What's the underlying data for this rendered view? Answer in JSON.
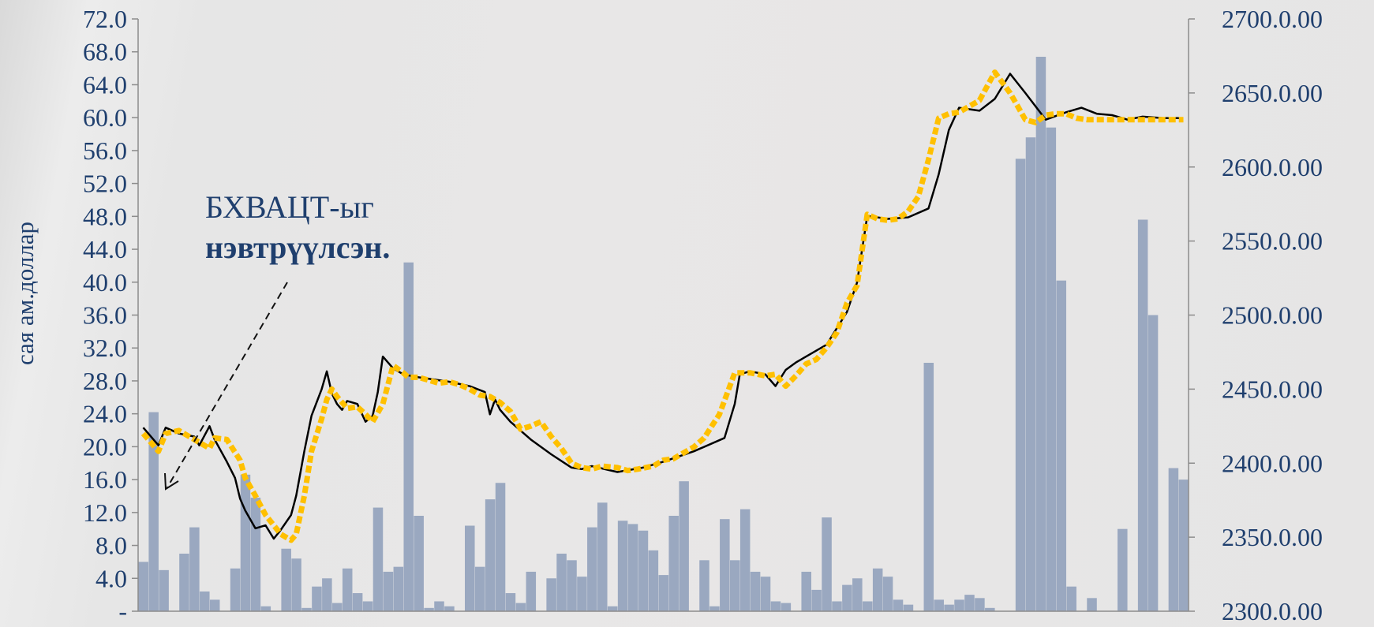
{
  "chart_data": {
    "type": "bar",
    "combo_with": "line",
    "y_left": {
      "label": "сая ам.доллар",
      "ticks": [
        "-",
        "4.0",
        "8.0",
        "12.0",
        "16.0",
        "20.0",
        "24.0",
        "28.0",
        "32.0",
        "36.0",
        "40.0",
        "44.0",
        "48.0",
        "52.0",
        "56.0",
        "60.0",
        "64.0",
        "68.0",
        "72.0"
      ],
      "ylim": [
        0,
        72
      ]
    },
    "y_right": {
      "label": "",
      "ticks": [
        "2300.0.00",
        "2350.0.00",
        "2400.0.00",
        "2450.0.00",
        "2500.0.00",
        "2550.0.00",
        "2600.0.00",
        "2650.0.00",
        "2700.0.00"
      ],
      "ylim": [
        2300,
        2700
      ]
    },
    "annotation": {
      "line1": "БХВАЦТ-ыг",
      "line2": "нэвтрүүлсэн."
    },
    "series": [
      {
        "type": "bar",
        "axis": "left",
        "color": "#9aa8c0",
        "values": [
          6.0,
          24.2,
          5.0,
          0,
          7.0,
          10.2,
          2.4,
          1.4,
          0,
          5.2,
          16.6,
          13.8,
          0.6,
          0,
          7.6,
          6.4,
          0.4,
          3.0,
          4.0,
          1.0,
          5.2,
          2.2,
          1.2,
          12.6,
          4.8,
          5.4,
          42.4,
          11.6,
          0.4,
          1.2,
          0.6,
          0,
          10.4,
          5.4,
          13.6,
          15.6,
          2.2,
          1.0,
          4.8,
          0,
          4.0,
          7.0,
          6.2,
          4.2,
          10.2,
          13.2,
          0.6,
          11.0,
          10.6,
          9.8,
          7.4,
          4.4,
          11.6,
          15.8,
          0,
          6.2,
          0.6,
          11.2,
          6.2,
          12.4,
          4.8,
          4.2,
          1.2,
          1.0,
          0,
          4.8,
          2.6,
          11.4,
          1.2,
          3.2,
          4.0,
          1.2,
          5.2,
          4.2,
          1.4,
          0.8,
          0,
          30.2,
          1.4,
          0.8,
          1.4,
          2.0,
          1.6,
          0.4,
          0,
          0,
          55.0,
          57.6,
          67.4,
          58.8,
          40.2,
          3.0,
          0,
          1.6,
          0,
          0,
          10.0,
          0,
          47.6,
          36.0,
          0,
          17.4,
          16.0
        ]
      },
      {
        "type": "line",
        "axis": "right",
        "name": "",
        "color": "#ffc000",
        "x": [
          0,
          1.5,
          2.2,
          3.5,
          5.0,
          6.5,
          7.0,
          8.2,
          9.5,
          10.0,
          11.0,
          12.0,
          12.8,
          13.5,
          14.5,
          15.0,
          15.8,
          16.5,
          17.5,
          18.0,
          18.5,
          19.0,
          20.0,
          21.0,
          21.8,
          22.5,
          23.5,
          24.5,
          25.5,
          26.0,
          27.0,
          28.0,
          29.0,
          30.0,
          31.0,
          32.0,
          33.0,
          34.0,
          35.0,
          36.0,
          37.0,
          38.0,
          39.0,
          40.0,
          41.0,
          42.0,
          43.0,
          44.0,
          45.0,
          46.5,
          47.5,
          48.5,
          50.0,
          51.0,
          52.0,
          53.0,
          54.0,
          55.0,
          56.5,
          58.0,
          59.5,
          61.0,
          62.0,
          63.0,
          64.0,
          65.0,
          66.0,
          67.0,
          68.0,
          69.0,
          70.0,
          71.0,
          72.0,
          73.0,
          74.0,
          75.0,
          76.0,
          77.0,
          78.0,
          79.0,
          80.0,
          82.0,
          83.5,
          85.0,
          86.5,
          87.5,
          88.5,
          89.5,
          90.5,
          91.5,
          92.5,
          93.5,
          94.5,
          95.5,
          96.5,
          98.0,
          100.0,
          101.0,
          102.0
        ],
        "values": [
          2420,
          2408,
          2420,
          2422,
          2416,
          2410,
          2417,
          2416,
          2402,
          2390,
          2378,
          2365,
          2358,
          2352,
          2348,
          2352,
          2378,
          2408,
          2430,
          2443,
          2450,
          2445,
          2437,
          2438,
          2433,
          2428,
          2440,
          2466,
          2461,
          2458,
          2458,
          2456,
          2454,
          2455,
          2453,
          2450,
          2446,
          2445,
          2441,
          2435,
          2423,
          2425,
          2428,
          2418,
          2410,
          2400,
          2397,
          2396,
          2398,
          2397,
          2395,
          2396,
          2398,
          2402,
          2403,
          2407,
          2411,
          2417,
          2433,
          2461,
          2461,
          2459,
          2460,
          2452,
          2459,
          2467,
          2470,
          2478,
          2488,
          2508,
          2520,
          2568,
          2565,
          2564,
          2565,
          2570,
          2580,
          2605,
          2633,
          2636,
          2637,
          2645,
          2664,
          2650,
          2632,
          2630,
          2635,
          2636,
          2636,
          2633,
          2632,
          2632,
          2632,
          2632,
          2632,
          2632,
          2632,
          2632,
          2632
        ]
      },
      {
        "type": "line",
        "axis": "right",
        "name": "",
        "color": "#000000",
        "x": [
          0,
          1.5,
          2.2,
          3.5,
          5.0,
          5.5,
          6.5,
          7.0,
          8.2,
          9.0,
          9.5,
          10.0,
          11.0,
          12.0,
          12.8,
          13.5,
          14.5,
          15.0,
          15.8,
          16.5,
          17.5,
          18.0,
          18.5,
          19.0,
          19.5,
          20.0,
          21.0,
          21.8,
          22.5,
          23.0,
          23.5,
          24.5,
          25.5,
          27.0,
          30.0,
          32.0,
          33.5,
          34.0,
          34.5,
          35.0,
          36.0,
          38.0,
          40.0,
          42.0,
          43.0,
          44.0,
          46.5,
          49.0,
          51.0,
          54.0,
          57.0,
          58.0,
          58.5,
          59.5,
          61.0,
          62.0,
          63.0,
          64.0,
          65.0,
          67.0,
          69.0,
          70.0,
          71.0,
          73.0,
          75.0,
          77.0,
          78.0,
          79.0,
          80.0,
          82.0,
          83.5,
          85.0,
          86.5,
          88.5,
          90.5,
          92.0,
          93.5,
          95.0,
          96.5,
          98.0,
          100.0,
          102.0
        ],
        "values": [
          2424,
          2412,
          2424,
          2420,
          2418,
          2412,
          2425,
          2416,
          2401,
          2390,
          2376,
          2368,
          2356,
          2358,
          2349,
          2355,
          2365,
          2378,
          2408,
          2432,
          2450,
          2462,
          2447,
          2440,
          2436,
          2442,
          2440,
          2428,
          2432,
          2448,
          2472,
          2464,
          2460,
          2458,
          2455,
          2452,
          2448,
          2433,
          2443,
          2436,
          2428,
          2416,
          2406,
          2397,
          2396,
          2398,
          2394,
          2397,
          2401,
          2408,
          2417,
          2440,
          2460,
          2462,
          2460,
          2452,
          2463,
          2468,
          2472,
          2480,
          2502,
          2522,
          2567,
          2565,
          2566,
          2572,
          2595,
          2625,
          2640,
          2638,
          2646,
          2663,
          2650,
          2632,
          2637,
          2640,
          2636,
          2635,
          2632,
          2634,
          2633,
          2633
        ]
      }
    ]
  }
}
